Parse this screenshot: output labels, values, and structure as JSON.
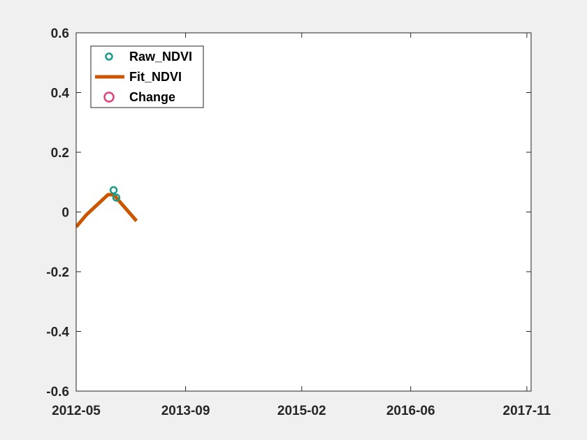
{
  "chart_data": {
    "type": "line",
    "title": "",
    "xlabel": "",
    "ylabel": "",
    "x_axis_type": "date",
    "xlim": [
      "2012-05-01",
      "2017-11-20"
    ],
    "ylim": [
      -0.6,
      0.6
    ],
    "x_ticks": [
      "2012-05",
      "2013-09",
      "2015-02",
      "2016-06",
      "2017-11"
    ],
    "y_ticks": [
      "-0.6",
      "-0.4",
      "-0.2",
      "0",
      "0.2",
      "0.4",
      "0.6"
    ],
    "grid": false,
    "legend_position": "top-left",
    "series": [
      {
        "name": "Raw_NDVI",
        "type": "scatter",
        "marker": "circle-open",
        "color": "#1a9a8a",
        "points": [
          {
            "x": "2012-10-15",
            "y": 0.073
          },
          {
            "x": "2012-10-27",
            "y": 0.048
          }
        ]
      },
      {
        "name": "Fit_NDVI",
        "type": "line",
        "color": "#cc5500",
        "points": [
          {
            "x": "2012-05-01",
            "y": -0.05
          },
          {
            "x": "2012-06-15",
            "y": -0.01
          },
          {
            "x": "2012-09-20",
            "y": 0.058
          },
          {
            "x": "2012-10-15",
            "y": 0.058
          },
          {
            "x": "2013-01-25",
            "y": -0.03
          }
        ]
      },
      {
        "name": "Change",
        "type": "scatter",
        "marker": "circle-open",
        "color": "#e0407f",
        "points": []
      }
    ]
  }
}
